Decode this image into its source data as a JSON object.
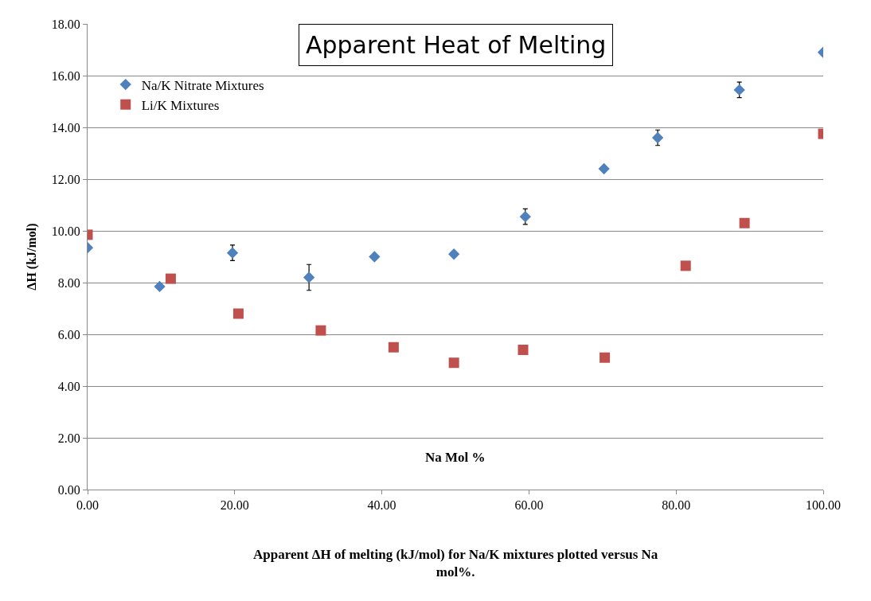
{
  "chart_data": {
    "type": "scatter",
    "title": "Apparent Heat of Melting",
    "ylabel": "ΔH (kJ/mol)",
    "xlabel": "Na Mol %",
    "annotations": [
      "Apparent ΔH of melting (kJ/mol) for Na/K mixtures plotted versus Na mol%."
    ],
    "series": [
      {
        "name": "Na/K Nitrate Mixtures",
        "color": "#4f81bd",
        "marker": "diamond",
        "x": [
          0,
          9.8,
          19.7,
          30.1,
          39.0,
          49.8,
          59.5,
          70.2,
          77.5,
          88.6,
          100
        ],
        "values": [
          9.35,
          7.85,
          9.15,
          8.2,
          9.0,
          9.1,
          10.55,
          12.4,
          13.6,
          15.45,
          16.9
        ],
        "errors": [
          null,
          null,
          0.3,
          0.5,
          null,
          null,
          0.3,
          null,
          0.3,
          0.3,
          null
        ]
      },
      {
        "name": "Li/K Mixtures",
        "color": "#c0504d",
        "marker": "square",
        "x": [
          0,
          11.3,
          20.5,
          31.7,
          41.6,
          49.8,
          59.2,
          70.3,
          81.3,
          89.3,
          100
        ],
        "values": [
          9.85,
          8.15,
          6.8,
          6.15,
          5.5,
          4.9,
          5.4,
          5.1,
          8.65,
          10.3,
          13.75
        ]
      }
    ],
    "xlim": [
      0,
      100
    ],
    "xticks": [
      {
        "value": 0,
        "label": "0.00"
      },
      {
        "value": 20,
        "label": "20.00"
      },
      {
        "value": 40,
        "label": "40.00"
      },
      {
        "value": 60,
        "label": "60.00"
      },
      {
        "value": 80,
        "label": "80.00"
      },
      {
        "value": 100,
        "label": "100.00"
      }
    ],
    "ylim": [
      0,
      18
    ],
    "yticks": [
      {
        "value": 0,
        "label": "0.00"
      },
      {
        "value": 2,
        "label": "2.00"
      },
      {
        "value": 4,
        "label": "4.00"
      },
      {
        "value": 6,
        "label": "6.00"
      },
      {
        "value": 8,
        "label": "8.00"
      },
      {
        "value": 10,
        "label": "10.00"
      },
      {
        "value": 12,
        "label": "12.00"
      },
      {
        "value": 14,
        "label": "14.00"
      },
      {
        "value": 16,
        "label": "16.00"
      },
      {
        "value": 18,
        "label": "18.00"
      }
    ],
    "grid": "y",
    "legend": "top left"
  }
}
